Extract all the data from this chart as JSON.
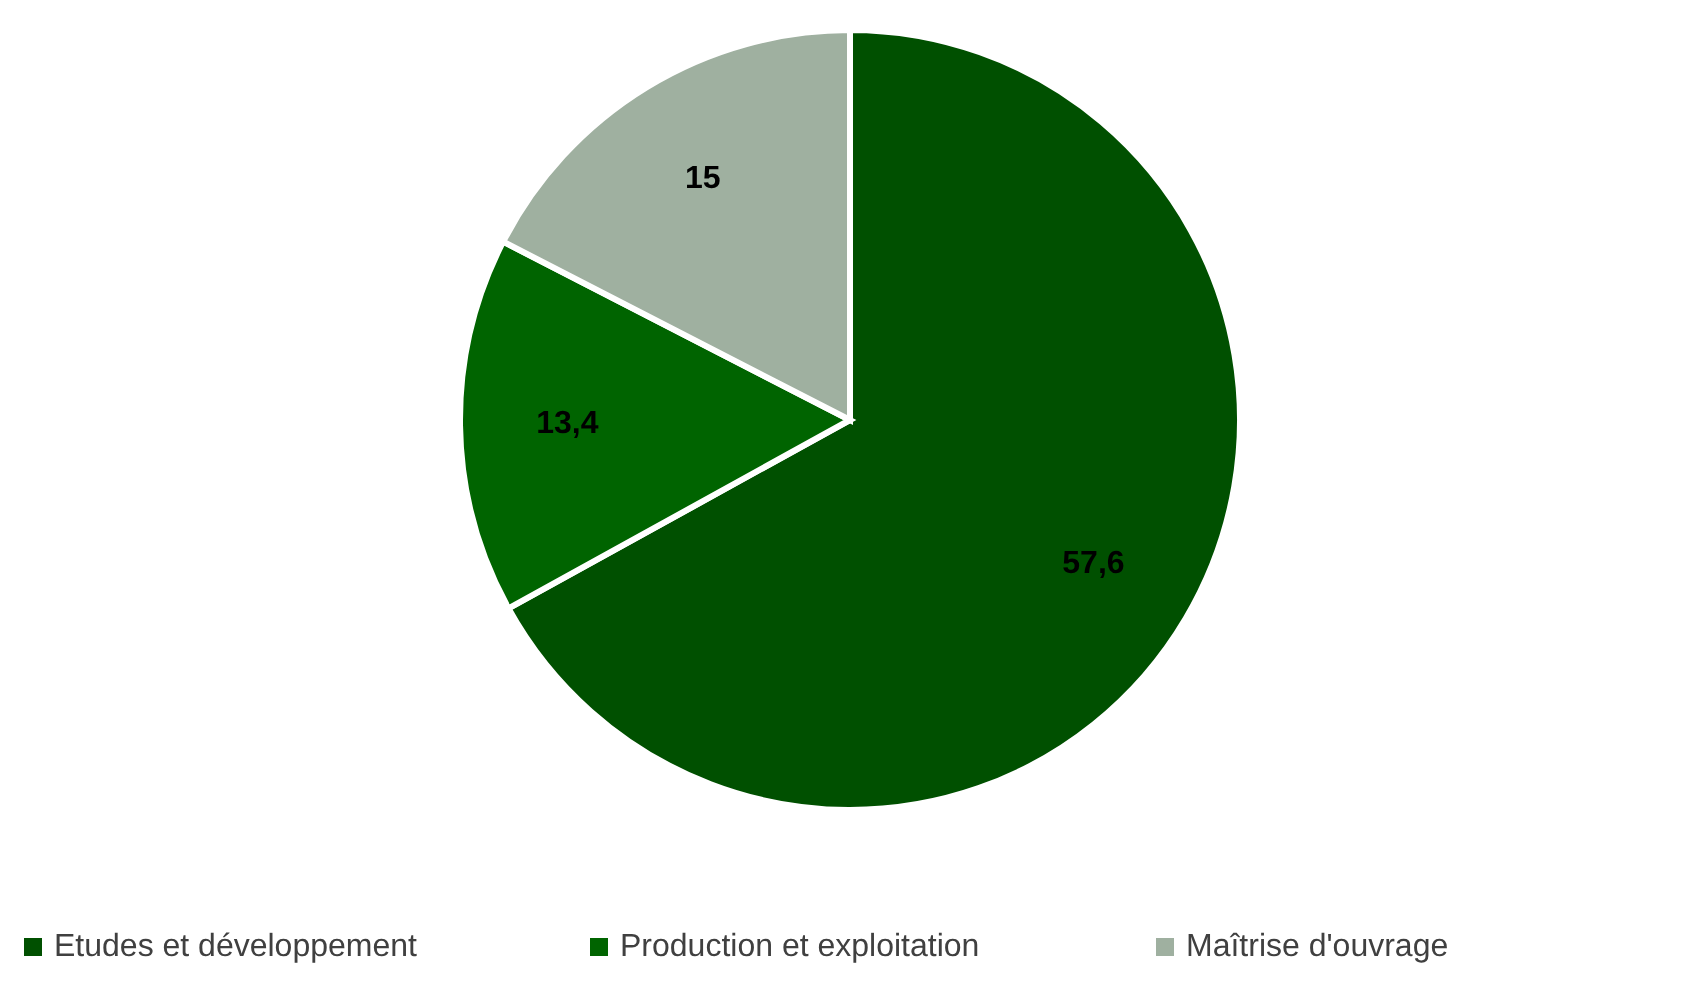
{
  "chart_data": {
    "type": "pie",
    "categories": [
      "Etudes et développement",
      "Production et exploitation",
      "Maîtrise d'ouvrage"
    ],
    "values": [
      57.6,
      13.4,
      15
    ],
    "colors": [
      "#005000",
      "#006400",
      "#9fb0a0"
    ],
    "value_labels": [
      "57,6",
      "13,4",
      "15"
    ],
    "legend": "bottom"
  }
}
